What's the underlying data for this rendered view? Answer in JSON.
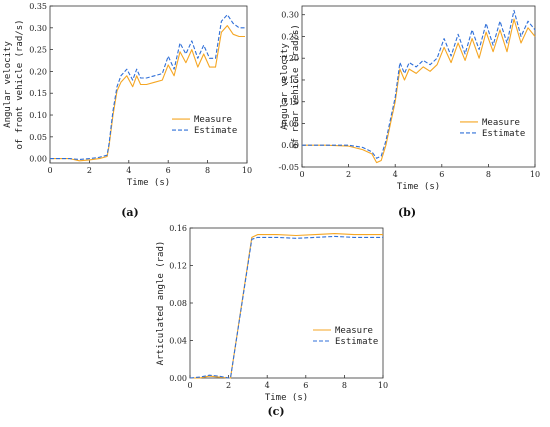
{
  "colors": {
    "measure": "#f5a623",
    "estimate": "#2f6fd8",
    "axis": "#333333"
  },
  "chart_data": [
    {
      "id": "a",
      "type": "line",
      "caption": "(a)",
      "xlabel": "Time (s)",
      "ylabel_lines": [
        "Angular velocity",
        "of front vehicle (rad/s)"
      ],
      "xlim": [
        0,
        10
      ],
      "ylim": [
        -0.01,
        0.35
      ],
      "xticks": [
        0,
        2,
        4,
        6,
        8,
        10
      ],
      "yticks": [
        0.0,
        0.05,
        0.1,
        0.15,
        0.2,
        0.25,
        0.3,
        0.35
      ],
      "ytick_labels": [
        "0.00",
        "0.05",
        "0.10",
        "0.15",
        "0.20",
        "0.25",
        "0.30",
        "0.35"
      ],
      "legend": "center-right",
      "series": [
        {
          "name": "Measure",
          "style": "solid",
          "x": [
            0,
            1,
            1.5,
            2,
            2.5,
            2.9,
            3.0,
            3.2,
            3.4,
            3.6,
            3.9,
            4.2,
            4.4,
            4.6,
            4.9,
            5.3,
            5.7,
            6.0,
            6.3,
            6.6,
            6.9,
            7.2,
            7.5,
            7.8,
            8.1,
            8.4,
            8.7,
            9.0,
            9.3,
            9.6,
            9.9
          ],
          "y": [
            0,
            0,
            -0.005,
            -0.003,
            0.0,
            0.005,
            0.03,
            0.1,
            0.155,
            0.175,
            0.19,
            0.165,
            0.19,
            0.17,
            0.17,
            0.175,
            0.18,
            0.215,
            0.19,
            0.245,
            0.22,
            0.25,
            0.21,
            0.24,
            0.21,
            0.21,
            0.29,
            0.305,
            0.285,
            0.28,
            0.28
          ]
        },
        {
          "name": "Estimate",
          "style": "dashed",
          "x": [
            0,
            1,
            1.5,
            2,
            2.5,
            2.9,
            3.0,
            3.2,
            3.4,
            3.6,
            3.9,
            4.2,
            4.4,
            4.6,
            4.9,
            5.3,
            5.7,
            6.0,
            6.3,
            6.6,
            6.9,
            7.2,
            7.5,
            7.8,
            8.1,
            8.4,
            8.7,
            9.0,
            9.3,
            9.6,
            9.9
          ],
          "y": [
            0,
            0,
            -0.002,
            0.0,
            0.003,
            0.008,
            0.035,
            0.11,
            0.165,
            0.19,
            0.205,
            0.18,
            0.205,
            0.185,
            0.185,
            0.19,
            0.195,
            0.235,
            0.205,
            0.265,
            0.24,
            0.27,
            0.23,
            0.26,
            0.23,
            0.23,
            0.315,
            0.33,
            0.31,
            0.3,
            0.3
          ]
        }
      ]
    },
    {
      "id": "b",
      "type": "line",
      "caption": "(b)",
      "xlabel": "Time (s)",
      "ylabel_lines": [
        "Angular velocity",
        "of rear vehicle (rad/s)"
      ],
      "xlim": [
        0,
        10
      ],
      "ylim": [
        -0.05,
        0.32
      ],
      "xticks": [
        0,
        2,
        4,
        6,
        8,
        10
      ],
      "yticks": [
        -0.05,
        0.0,
        0.05,
        0.1,
        0.15,
        0.2,
        0.25,
        0.3
      ],
      "ytick_labels": [
        "-0.05",
        "0.00",
        "0.05",
        "0.10",
        "0.15",
        "0.20",
        "0.25",
        "0.30"
      ],
      "legend": "center-right",
      "series": [
        {
          "name": "Measure",
          "style": "solid",
          "x": [
            0,
            1,
            2,
            2.6,
            3.0,
            3.2,
            3.4,
            3.6,
            3.8,
            4.0,
            4.2,
            4.4,
            4.6,
            4.9,
            5.2,
            5.5,
            5.8,
            6.1,
            6.4,
            6.7,
            7.0,
            7.3,
            7.6,
            7.9,
            8.2,
            8.5,
            8.8,
            9.1,
            9.4,
            9.7,
            10.0
          ],
          "y": [
            0,
            0,
            -0.002,
            -0.01,
            -0.02,
            -0.04,
            -0.035,
            0.0,
            0.05,
            0.1,
            0.175,
            0.15,
            0.175,
            0.165,
            0.18,
            0.17,
            0.185,
            0.225,
            0.19,
            0.235,
            0.195,
            0.245,
            0.2,
            0.26,
            0.215,
            0.265,
            0.215,
            0.29,
            0.235,
            0.27,
            0.25
          ]
        },
        {
          "name": "Estimate",
          "style": "dashed",
          "x": [
            0,
            1,
            2,
            2.6,
            3.0,
            3.2,
            3.4,
            3.6,
            3.8,
            4.0,
            4.2,
            4.4,
            4.6,
            4.9,
            5.2,
            5.5,
            5.8,
            6.1,
            6.4,
            6.7,
            7.0,
            7.3,
            7.6,
            7.9,
            8.2,
            8.5,
            8.8,
            9.1,
            9.4,
            9.7,
            10.0
          ],
          "y": [
            0,
            0,
            0,
            -0.005,
            -0.015,
            -0.03,
            -0.025,
            0.01,
            0.06,
            0.11,
            0.19,
            0.165,
            0.19,
            0.18,
            0.195,
            0.185,
            0.2,
            0.245,
            0.205,
            0.255,
            0.21,
            0.265,
            0.22,
            0.28,
            0.23,
            0.285,
            0.235,
            0.31,
            0.25,
            0.285,
            0.265
          ]
        }
      ]
    },
    {
      "id": "c",
      "type": "line",
      "caption": "(c)",
      "xlabel": "Time (s)",
      "ylabel_lines": [
        "Articulated angle (rad)"
      ],
      "xlim": [
        0,
        10
      ],
      "ylim": [
        0,
        0.16
      ],
      "xticks": [
        0,
        2,
        4,
        6,
        8,
        10
      ],
      "yticks": [
        0.0,
        0.04,
        0.08,
        0.12,
        0.16
      ],
      "ytick_labels": [
        "0.00",
        "0.04",
        "0.08",
        "0.12",
        "0.16"
      ],
      "legend": "lower-right",
      "series": [
        {
          "name": "Measure",
          "style": "solid",
          "x": [
            0,
            0.5,
            1.0,
            1.5,
            2.0,
            2.1,
            3.2,
            3.5,
            4.5,
            5.5,
            6.5,
            7.5,
            8.5,
            10.0
          ],
          "y": [
            0.0,
            0.0,
            0.002,
            0.001,
            0.0,
            0.0,
            0.15,
            0.153,
            0.153,
            0.152,
            0.153,
            0.154,
            0.153,
            0.153
          ]
        },
        {
          "name": "Estimate",
          "style": "dashed",
          "x": [
            0,
            0.5,
            1.0,
            1.5,
            2.0,
            2.1,
            3.2,
            3.5,
            4.5,
            5.5,
            6.5,
            7.5,
            8.5,
            10.0
          ],
          "y": [
            0.0,
            0.001,
            0.003,
            0.002,
            0.0,
            0.0,
            0.148,
            0.15,
            0.15,
            0.149,
            0.15,
            0.151,
            0.15,
            0.15
          ]
        }
      ]
    }
  ]
}
